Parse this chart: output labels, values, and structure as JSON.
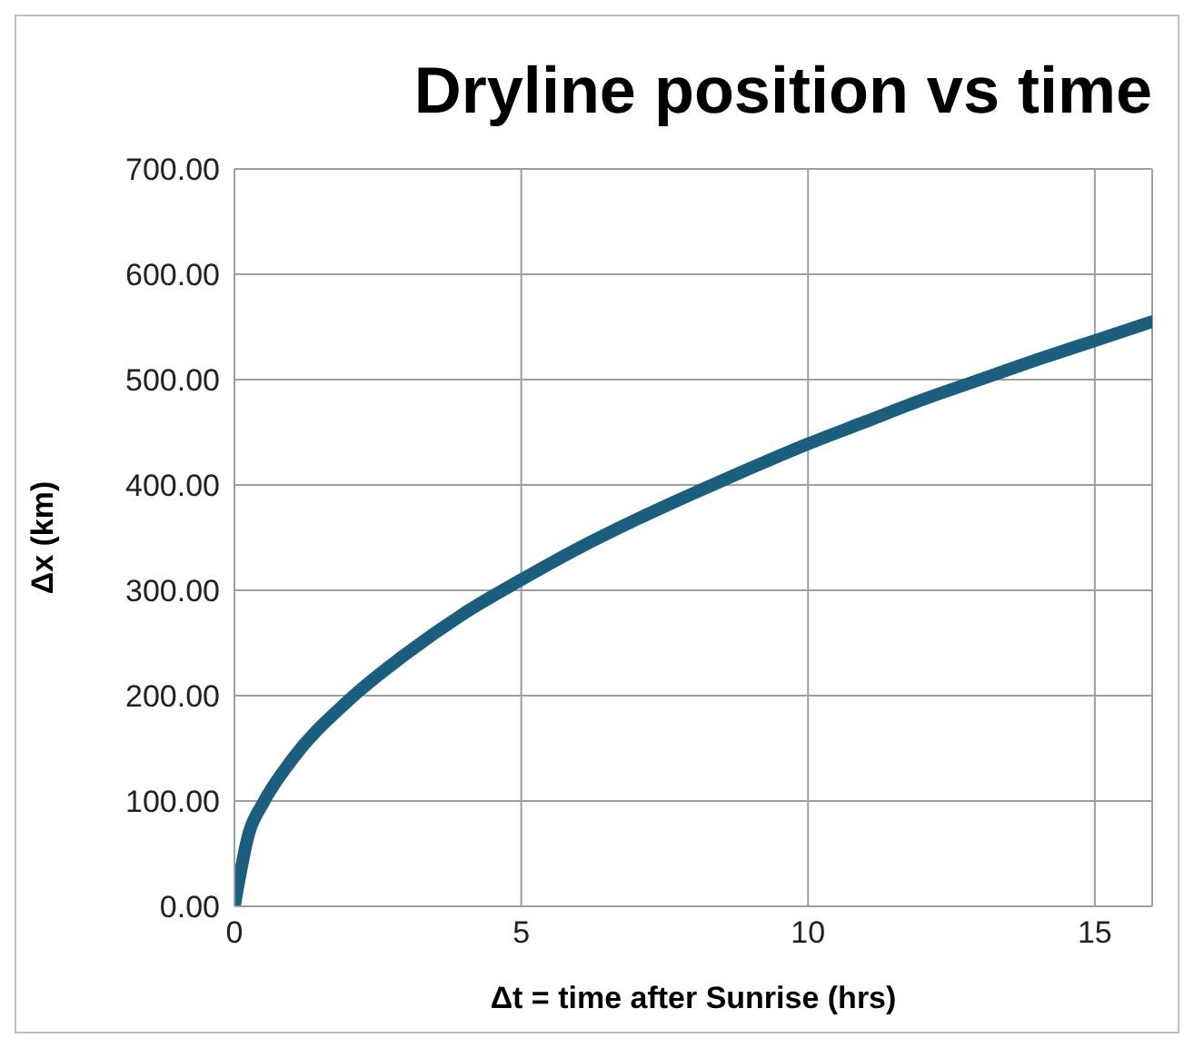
{
  "chart_data": {
    "type": "line",
    "title": "Dryline position vs time",
    "xlabel": "Δt = time after Sunrise (hrs)",
    "ylabel": "Δx (km)",
    "x": [
      0,
      0.25,
      0.5,
      1,
      2,
      3,
      4,
      5,
      6,
      7,
      8,
      9,
      10,
      11,
      12,
      13,
      14,
      15,
      16
    ],
    "series": [
      {
        "color": "#1b5e7e",
        "values": [
          0,
          69,
          98,
          139,
          196,
          240,
          278,
          310,
          340,
          367,
          392,
          416,
          439,
          460,
          481,
          500,
          519,
          537,
          555
        ]
      }
    ],
    "xlim": [
      0,
      16
    ],
    "xticks": [
      0,
      5,
      10,
      15
    ],
    "ylim": [
      0,
      700
    ],
    "yticks": [
      {
        "value": 0,
        "label": "0.00"
      },
      {
        "value": 100,
        "label": "100.00"
      },
      {
        "value": 200,
        "label": "200.00"
      },
      {
        "value": 300,
        "label": "300.00"
      },
      {
        "value": 400,
        "label": "400.00"
      },
      {
        "value": 500,
        "label": "500.00"
      },
      {
        "value": 600,
        "label": "600.00"
      },
      {
        "value": 700,
        "label": "700.00"
      }
    ],
    "grid": true,
    "marker": "none",
    "line_style": "solid"
  }
}
